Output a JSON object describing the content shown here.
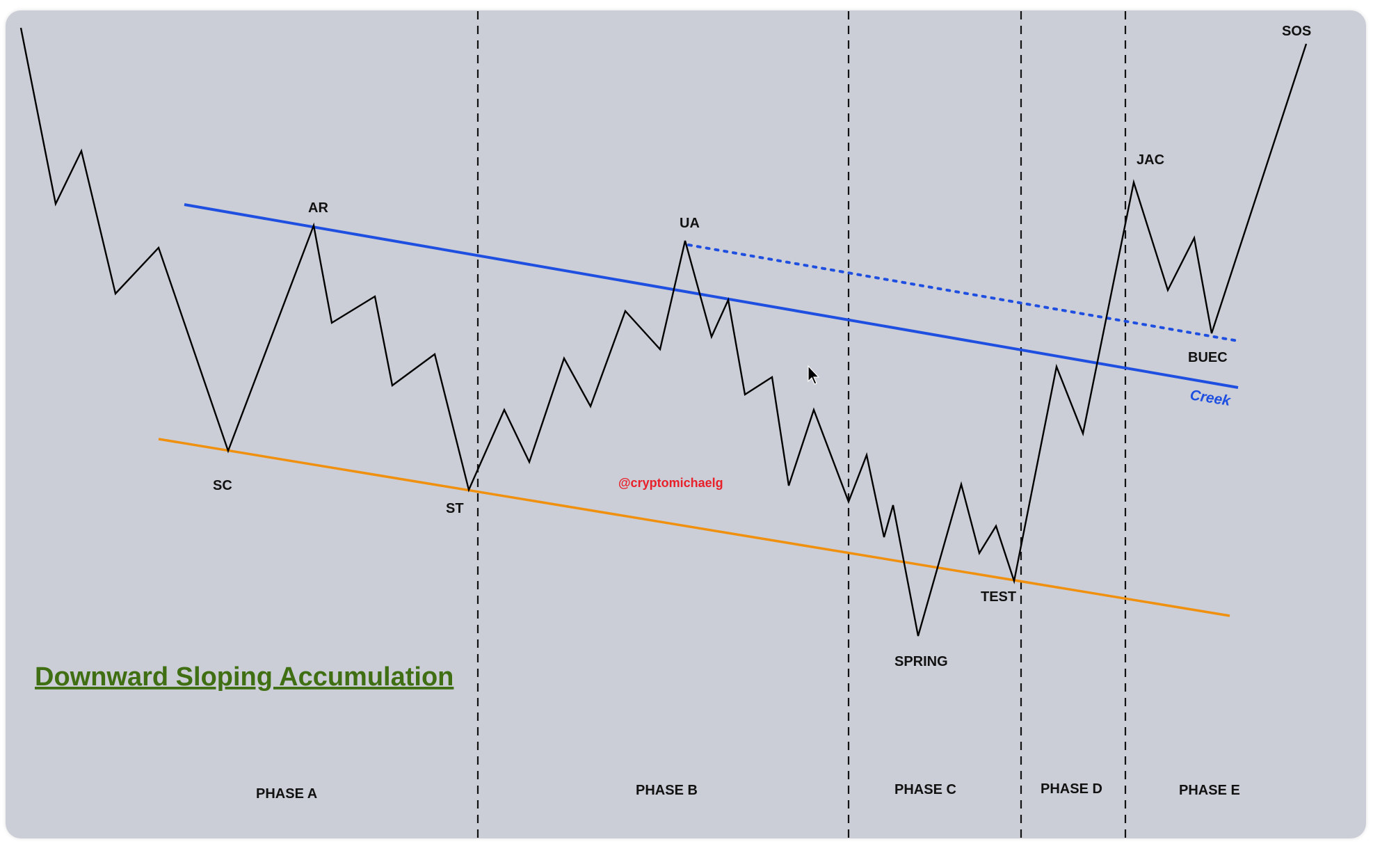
{
  "title": "Downward Sloping Accumulation",
  "watermark": "@cryptomichaelg",
  "events": {
    "sc": "SC",
    "ar": "AR",
    "st": "ST",
    "ua": "UA",
    "spring": "SPRING",
    "test": "TEST",
    "jac": "JAC",
    "buec": "BUEC",
    "sos": "SOS"
  },
  "creek_label": "Creek",
  "phases": [
    "PHASE A",
    "PHASE B",
    "PHASE C",
    "PHASE D",
    "PHASE E"
  ],
  "colors": {
    "panel": "#cbced7",
    "creek_line": "#1f4fe0",
    "support_line": "#f0900f",
    "price_line": "#000000",
    "title": "#3f6f12",
    "watermark": "#e8202a",
    "phase_divider": "#111111"
  }
}
